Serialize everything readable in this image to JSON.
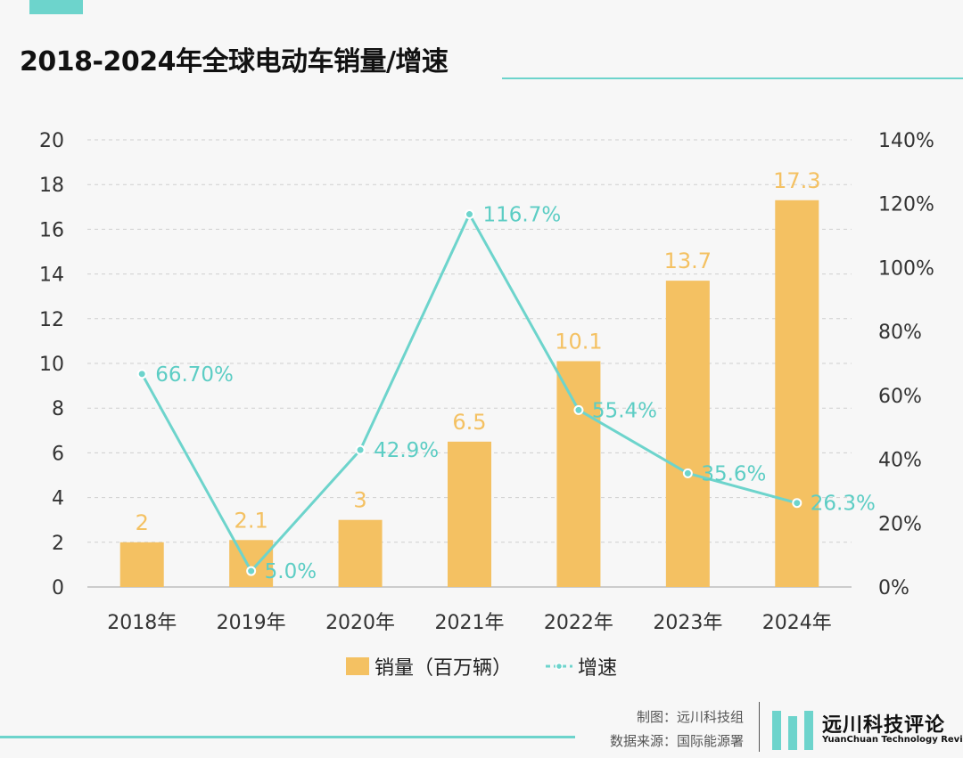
{
  "title": "2018-2024年全球电动车销量/增速",
  "colors": {
    "bar": "#f4c162",
    "line": "#6dd4cc",
    "accent": "#6dd4cc",
    "label_bar": "#f4c162",
    "label_line": "#5ccdc4"
  },
  "chart_data": {
    "type": "bar",
    "categories": [
      "2018年",
      "2019年",
      "2020年",
      "2021年",
      "2022年",
      "2023年",
      "2024年"
    ],
    "series": [
      {
        "name": "销量（百万辆）",
        "type": "bar",
        "axis": "left",
        "values": [
          2,
          2.1,
          3,
          6.5,
          10.1,
          13.7,
          17.3
        ],
        "labels": [
          "2",
          "2.1",
          "3",
          "6.5",
          "10.1",
          "13.7",
          "17.3"
        ]
      },
      {
        "name": "增速",
        "type": "line",
        "axis": "right",
        "values": [
          66.7,
          5.0,
          42.9,
          116.7,
          55.4,
          35.6,
          26.3
        ],
        "labels": [
          "66.70%",
          "5.0%",
          "42.9%",
          "116.7%",
          "55.4%",
          "35.6%",
          "26.3%"
        ]
      }
    ],
    "ylim": [
      0,
      20
    ],
    "yticks": [
      "0",
      "2",
      "4",
      "6",
      "8",
      "10",
      "12",
      "14",
      "16",
      "18",
      "20"
    ],
    "y2lim": [
      0,
      140
    ],
    "y2ticks": [
      "0%",
      "20%",
      "40%",
      "60%",
      "80%",
      "100%",
      "120%",
      "140%"
    ],
    "grid": true,
    "legend_position": "bottom"
  },
  "legend": {
    "bar_label": "销量（百万辆）",
    "line_label": "增速"
  },
  "credits": {
    "made_by": "制图：远川科技组",
    "source": "数据来源：国际能源署"
  },
  "logo": {
    "name_cn": "远川科技评论",
    "name_en": "YuanChuan Technology Review"
  }
}
